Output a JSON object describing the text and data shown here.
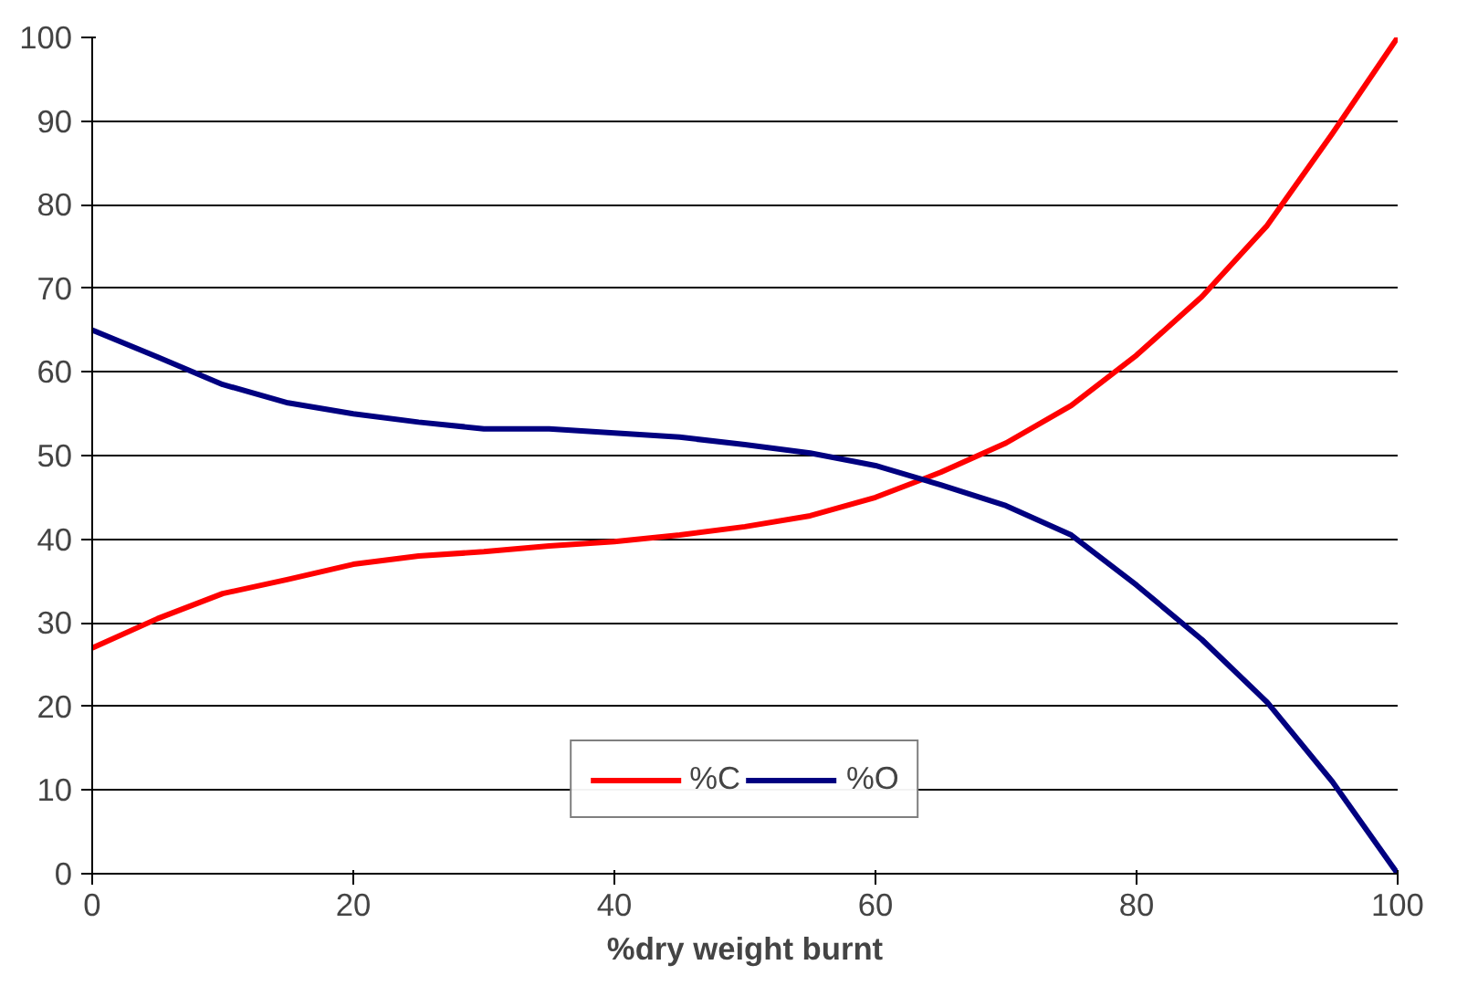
{
  "chart_data": {
    "type": "line",
    "xlabel": "%dry weight burnt",
    "x": [
      0,
      5,
      10,
      15,
      20,
      25,
      30,
      35,
      40,
      45,
      50,
      55,
      60,
      65,
      70,
      75,
      80,
      85,
      90,
      95,
      100
    ],
    "series": [
      {
        "name": "%C",
        "color": "#ff0000",
        "values": [
          27,
          30.5,
          33.5,
          35.2,
          37,
          38,
          38.5,
          39.2,
          39.7,
          40.5,
          41.5,
          42.8,
          45,
          48,
          51.5,
          56,
          62,
          69,
          77.5,
          88.5,
          100
        ]
      },
      {
        "name": "%O",
        "color": "#000080",
        "values": [
          65,
          61.8,
          58.5,
          56.3,
          55,
          54,
          53.2,
          53.2,
          52.7,
          52.2,
          51.3,
          50.3,
          48.8,
          46.5,
          44,
          40.5,
          34.5,
          28,
          20.5,
          11,
          0
        ]
      }
    ],
    "xlim": [
      0,
      100
    ],
    "xticks": [
      0,
      20,
      40,
      60,
      80,
      100
    ],
    "ylim": [
      0,
      100
    ],
    "yticks": [
      0,
      10,
      20,
      30,
      40,
      50,
      60,
      70,
      80,
      90,
      100
    ],
    "grid": "y",
    "legend": "bottom",
    "marker": "none",
    "line_style": "solid"
  }
}
